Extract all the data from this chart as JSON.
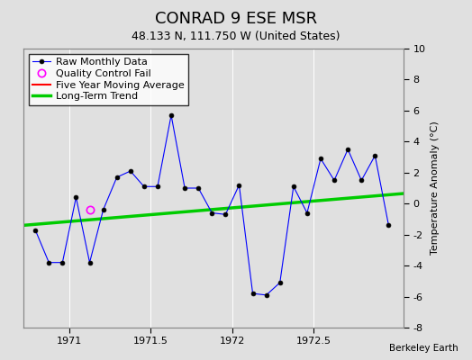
{
  "title": "CONRAD 9 ESE MSR",
  "subtitle": "48.133 N, 111.750 W (United States)",
  "ylabel": "Temperature Anomaly (°C)",
  "watermark": "Berkeley Earth",
  "xlim": [
    1970.72,
    1973.05
  ],
  "ylim": [
    -8,
    10
  ],
  "xticks": [
    1971,
    1971.5,
    1972,
    1972.5
  ],
  "yticks": [
    -8,
    -6,
    -4,
    -2,
    0,
    2,
    4,
    6,
    8,
    10
  ],
  "background_color": "#e0e0e0",
  "raw_x": [
    1970.7917,
    1970.875,
    1970.9583,
    1971.0417,
    1971.125,
    1971.2083,
    1971.2917,
    1971.375,
    1971.4583,
    1971.5417,
    1971.625,
    1971.7083,
    1971.7917,
    1971.875,
    1971.9583,
    1972.0417,
    1972.125,
    1972.2083,
    1972.2917,
    1972.375,
    1972.4583,
    1972.5417,
    1972.625,
    1972.7083,
    1972.7917,
    1972.875,
    1972.9583
  ],
  "raw_y": [
    -1.7,
    -3.8,
    -3.8,
    0.4,
    -3.8,
    -0.4,
    1.7,
    2.1,
    1.1,
    1.1,
    5.7,
    1.0,
    1.0,
    -0.6,
    -0.7,
    1.2,
    -5.8,
    -5.9,
    -5.1,
    1.1,
    -0.6,
    2.9,
    1.5,
    3.5,
    1.5,
    3.1,
    -1.4
  ],
  "qc_fail_x": [
    1971.125
  ],
  "qc_fail_y": [
    -0.4
  ],
  "trend_x": [
    1970.72,
    1973.05
  ],
  "trend_y": [
    -1.4,
    0.65
  ],
  "raw_line_color": "blue",
  "raw_marker_color": "black",
  "raw_marker_size": 3.5,
  "qc_marker_size": 6,
  "qc_color": "magenta",
  "trend_color": "#00cc00",
  "trend_linewidth": 2.5,
  "moving_avg_color": "red",
  "title_fontsize": 13,
  "subtitle_fontsize": 9,
  "tick_fontsize": 8,
  "legend_fontsize": 8
}
